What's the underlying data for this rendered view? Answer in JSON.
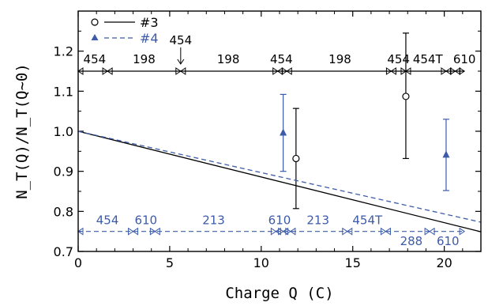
{
  "chart_data": {
    "type": "scatter",
    "xlabel": "Charge Q (C)",
    "ylabel": "N_T(Q)/N_T(Q~0)",
    "xlim": [
      0,
      22
    ],
    "ylim": [
      0.7,
      1.3
    ],
    "x_ticks": [
      0,
      5,
      10,
      15,
      20
    ],
    "y_ticks": [
      0.7,
      0.8,
      0.9,
      1.0,
      1.1,
      1.2
    ],
    "x_tick_labels": [
      "0",
      "5",
      "10",
      "15",
      "20"
    ],
    "y_tick_labels": [
      "0.7",
      "0.8",
      "0.9",
      "1.0",
      "1.1",
      "1.2"
    ],
    "legend": {
      "placement": "top-left"
    },
    "series": [
      {
        "name": "#3",
        "color": "#000000",
        "marker": "open-circle",
        "line_style": "solid",
        "points": [
          {
            "x": 11.9,
            "y": 0.932,
            "err_low": 0.807,
            "err_high": 1.057
          },
          {
            "x": 17.9,
            "y": 1.087,
            "err_low": 0.932,
            "err_high": 1.245
          }
        ],
        "fit_line": {
          "x": [
            0,
            22
          ],
          "y": [
            1.0,
            0.749
          ]
        },
        "runs": {
          "y_level": 1.15,
          "boundaries": [
            0,
            1.6,
            5.6,
            10.9,
            11.4,
            17.1,
            17.9,
            20.1,
            20.6,
            21.1
          ],
          "labels": [
            {
              "text": "454",
              "x": 0.9
            },
            {
              "text": "198",
              "x": 3.6
            },
            {
              "text": "198",
              "x": 8.2
            },
            {
              "text": "454",
              "x": 11.1
            },
            {
              "text": "198",
              "x": 14.3
            },
            {
              "text": "454",
              "x": 17.5
            },
            {
              "text": "454T",
              "x": 19.1
            },
            {
              "text": "610",
              "x": 21.1
            }
          ],
          "callout": {
            "text": "454",
            "x": 5.6
          }
        }
      },
      {
        "name": "#4",
        "color": "#3d5ba8",
        "marker": "filled-triangle",
        "line_style": "dashed",
        "points": [
          {
            "x": 11.2,
            "y": 0.997,
            "err_low": 0.9,
            "err_high": 1.092
          },
          {
            "x": 20.1,
            "y": 0.942,
            "err_low": 0.852,
            "err_high": 1.03
          }
        ],
        "fit_line": {
          "x": [
            0,
            22
          ],
          "y": [
            1.0,
            0.773
          ]
        },
        "runs": {
          "y_level": 0.75,
          "boundaries": [
            0,
            3.0,
            4.2,
            10.8,
            11.2,
            11.6,
            14.7,
            16.8,
            19.2,
            21.1
          ],
          "labels": [
            {
              "text": "454",
              "x": 1.6,
              "y": 0.778
            },
            {
              "text": "610",
              "x": 3.7,
              "y": 0.778
            },
            {
              "text": "213",
              "x": 7.4,
              "y": 0.778
            },
            {
              "text": "610",
              "x": 11.0,
              "y": 0.778
            },
            {
              "text": "213",
              "x": 13.1,
              "y": 0.778
            },
            {
              "text": "454T",
              "x": 15.8,
              "y": 0.778
            },
            {
              "text": "288",
              "x": 18.2,
              "y": 0.726
            },
            {
              "text": "610",
              "x": 20.2,
              "y": 0.726
            }
          ]
        }
      }
    ]
  }
}
